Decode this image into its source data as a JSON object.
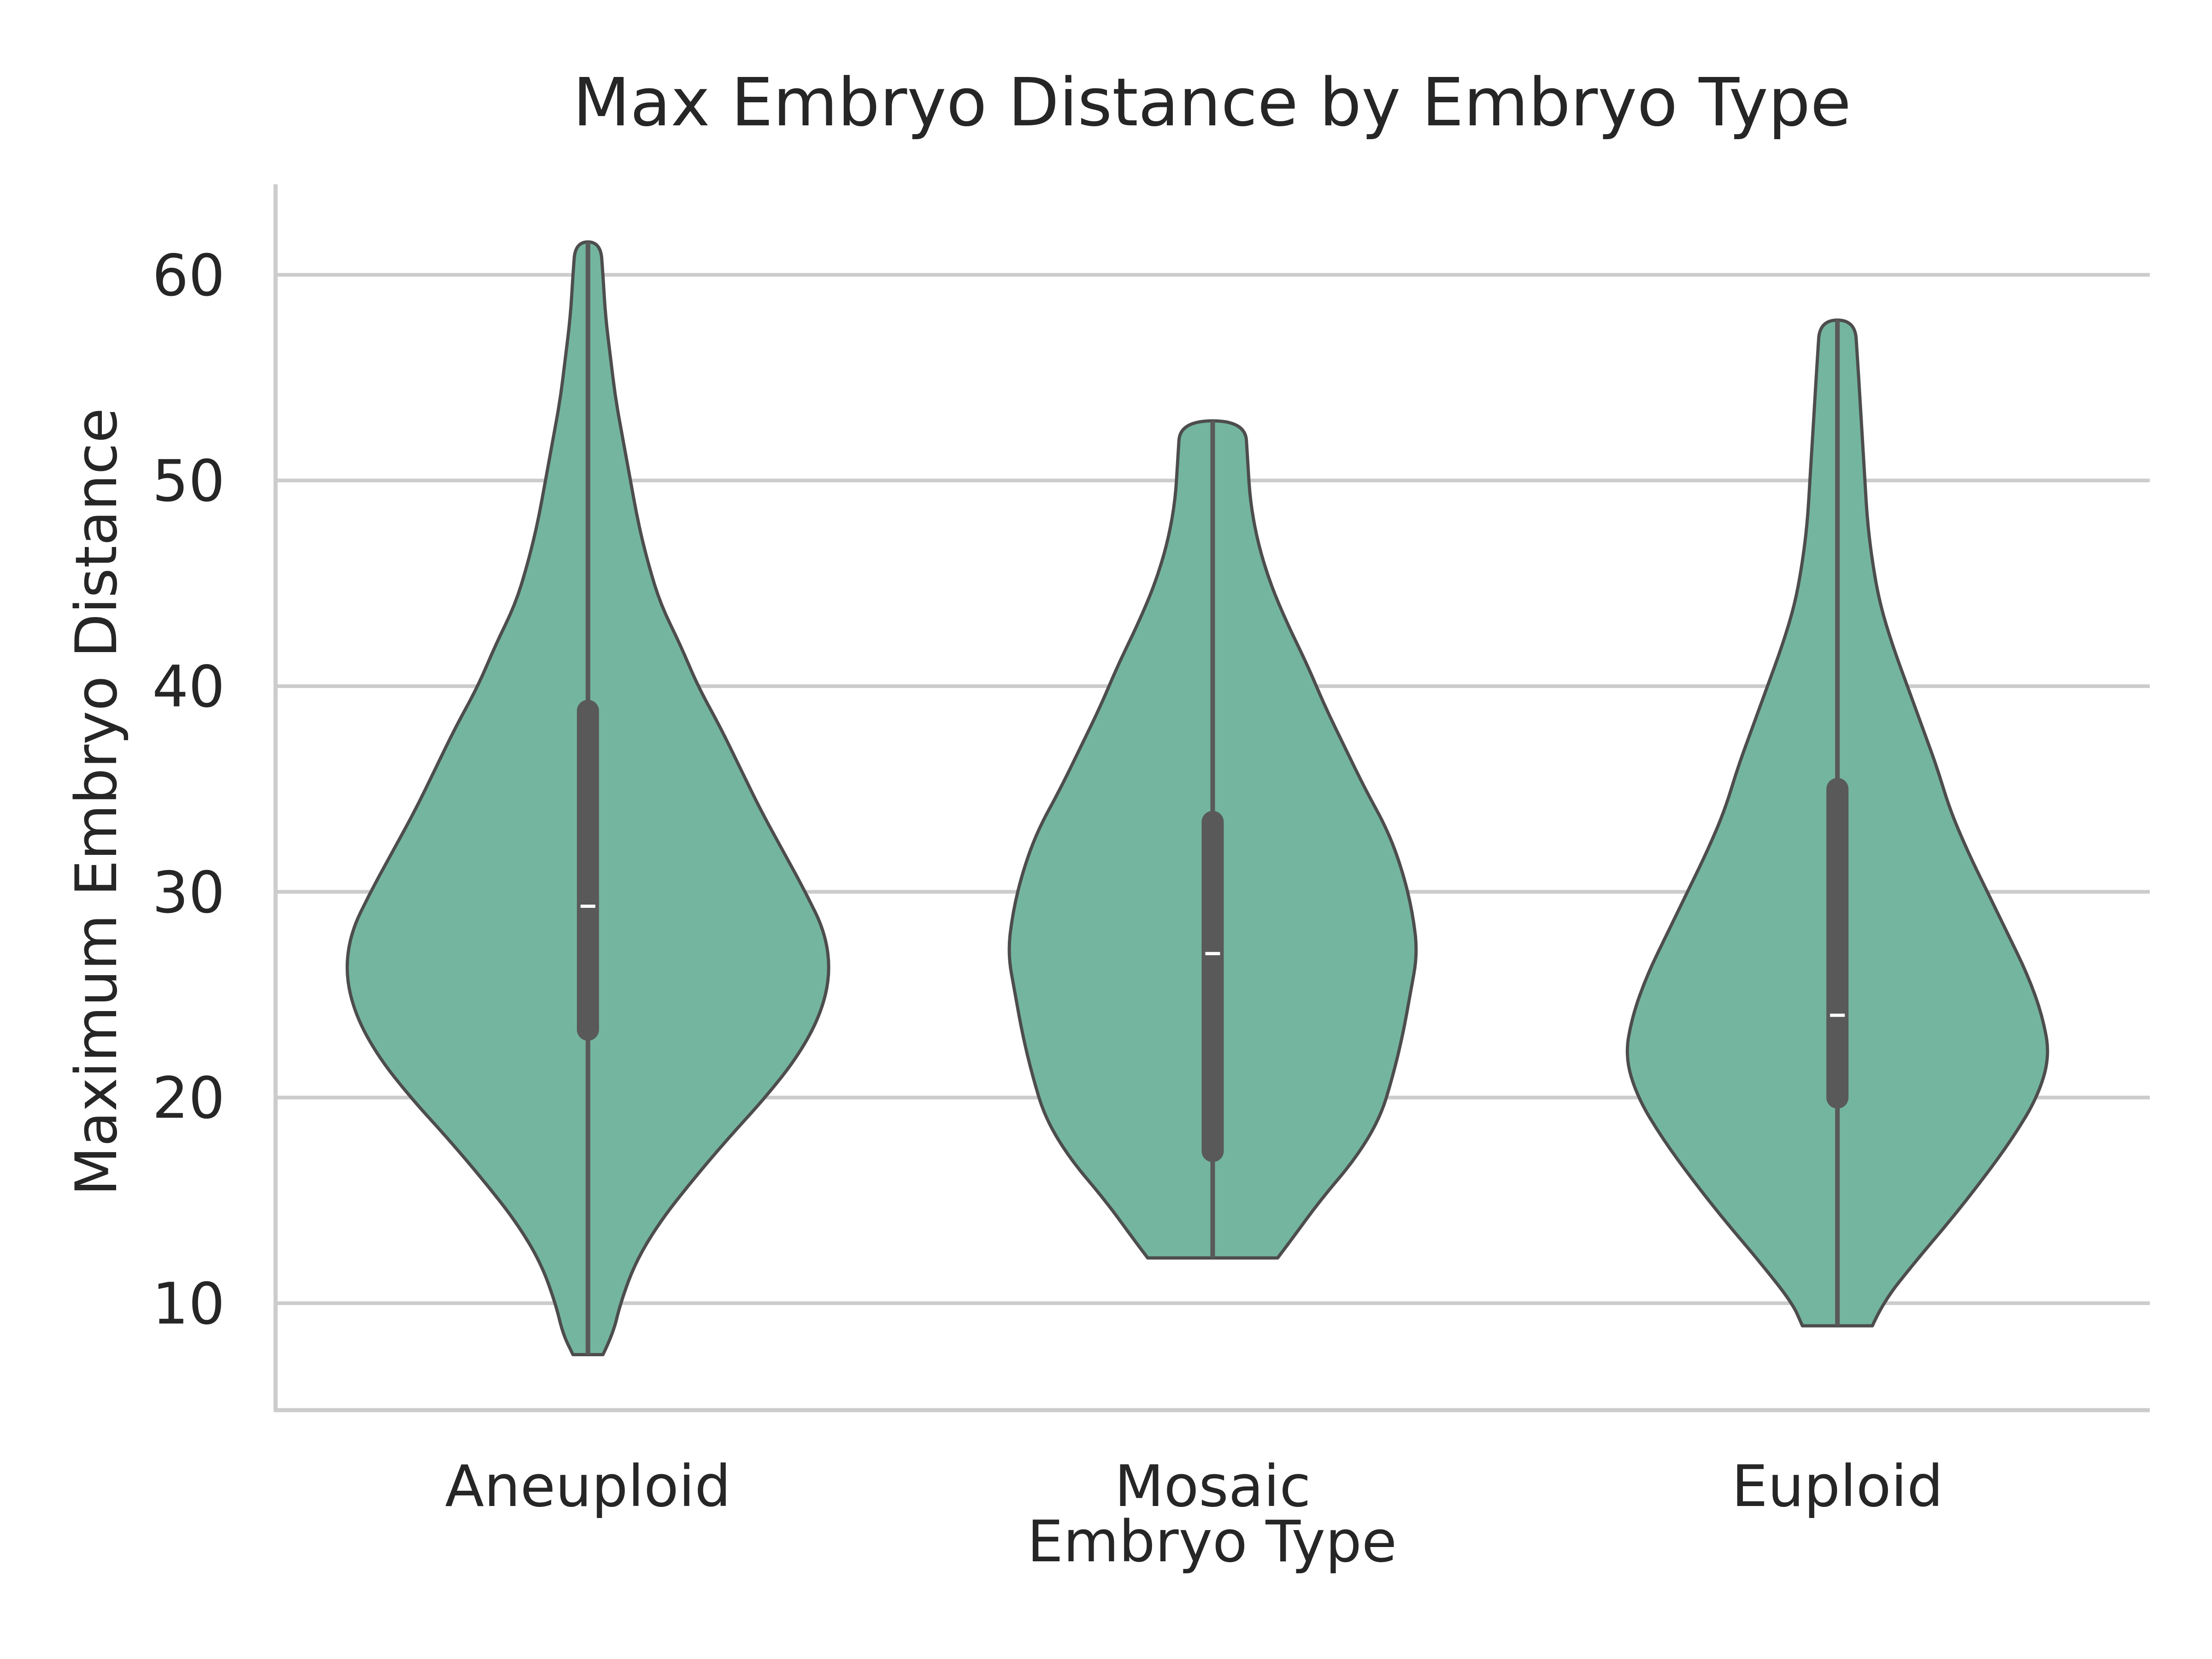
{
  "chart_data": {
    "type": "violin",
    "title": "Max Embryo Distance by Embryo Type",
    "xlabel": "Embryo Type",
    "ylabel": "Maximum Embryo Distance",
    "ylim": [
      4.8,
      64.4
    ],
    "yticks": [
      10,
      20,
      30,
      40,
      50,
      60
    ],
    "grid": "horizontal",
    "colors": {
      "fill": "#74b5a0",
      "edge": "#4d4d4d",
      "inner_box": "#595959",
      "median": "#ffffff",
      "grid": "#cccccc",
      "spine": "#cccccc"
    },
    "categories": [
      "Aneuploid",
      "Mosaic",
      "Euploid"
    ],
    "violins": [
      {
        "category": "Aneuploid",
        "min": 7.5,
        "q1": 23.3,
        "median": 29.3,
        "q3": 38.8,
        "max": 61.6,
        "density": [
          [
            7.5,
            0.06
          ],
          [
            8.5,
            0.1
          ],
          [
            10,
            0.13
          ],
          [
            12,
            0.19
          ],
          [
            14,
            0.29
          ],
          [
            16,
            0.42
          ],
          [
            18,
            0.56
          ],
          [
            20,
            0.71
          ],
          [
            22,
            0.84
          ],
          [
            24,
            0.93
          ],
          [
            26,
            0.97
          ],
          [
            28,
            0.95
          ],
          [
            30,
            0.87
          ],
          [
            32,
            0.78
          ],
          [
            34,
            0.69
          ],
          [
            36,
            0.61
          ],
          [
            38,
            0.53
          ],
          [
            40,
            0.44
          ],
          [
            42,
            0.37
          ],
          [
            44,
            0.29
          ],
          [
            46,
            0.24
          ],
          [
            48,
            0.2
          ],
          [
            50,
            0.17
          ],
          [
            52,
            0.14
          ],
          [
            54,
            0.11
          ],
          [
            56,
            0.09
          ],
          [
            58,
            0.07
          ],
          [
            60,
            0.06
          ],
          [
            61.6,
            0.05
          ]
        ]
      },
      {
        "category": "Mosaic",
        "min": 12.2,
        "q1": 17.4,
        "median": 27.0,
        "q3": 33.4,
        "max": 52.9,
        "density": [
          [
            12.2,
            0.26
          ],
          [
            13,
            0.31
          ],
          [
            15,
            0.43
          ],
          [
            17,
            0.57
          ],
          [
            19,
            0.67
          ],
          [
            21,
            0.72
          ],
          [
            23,
            0.76
          ],
          [
            25,
            0.79
          ],
          [
            27,
            0.82
          ],
          [
            29,
            0.8
          ],
          [
            31,
            0.76
          ],
          [
            33,
            0.7
          ],
          [
            35,
            0.61
          ],
          [
            37,
            0.53
          ],
          [
            39,
            0.45
          ],
          [
            41,
            0.38
          ],
          [
            43,
            0.3
          ],
          [
            45,
            0.23
          ],
          [
            47,
            0.18
          ],
          [
            49,
            0.15
          ],
          [
            51,
            0.14
          ],
          [
            52.9,
            0.13
          ]
        ]
      },
      {
        "category": "Euploid",
        "min": 8.9,
        "q1": 20.0,
        "median": 24.0,
        "q3": 35.0,
        "max": 57.8,
        "density": [
          [
            8.9,
            0.14
          ],
          [
            10,
            0.18
          ],
          [
            12,
            0.31
          ],
          [
            14,
            0.45
          ],
          [
            16,
            0.58
          ],
          [
            18,
            0.7
          ],
          [
            20,
            0.8
          ],
          [
            22,
            0.85
          ],
          [
            24,
            0.82
          ],
          [
            26,
            0.76
          ],
          [
            28,
            0.68
          ],
          [
            30,
            0.6
          ],
          [
            32,
            0.52
          ],
          [
            34,
            0.45
          ],
          [
            36,
            0.4
          ],
          [
            38,
            0.34
          ],
          [
            40,
            0.28
          ],
          [
            42,
            0.22
          ],
          [
            44,
            0.17
          ],
          [
            46,
            0.14
          ],
          [
            48,
            0.12
          ],
          [
            50,
            0.11
          ],
          [
            52,
            0.1
          ],
          [
            54,
            0.09
          ],
          [
            56,
            0.08
          ],
          [
            57.8,
            0.07
          ]
        ]
      }
    ]
  }
}
